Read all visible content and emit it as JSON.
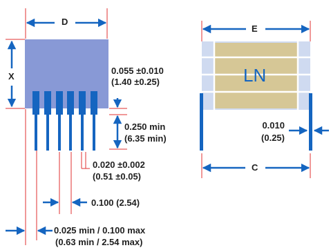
{
  "colors": {
    "dim_line": "#1565c0",
    "ref_line": "#e03030",
    "left_body": "#8899d6",
    "side_body": "#cfdaf0",
    "ln_fill": "#d6c796",
    "ln_text": "#1565c0",
    "pin": "#1565c0",
    "text": "#1f1f1f"
  },
  "left_view": {
    "width_label": "D",
    "height_label": "X",
    "body_gap": "0.055 ±0.010",
    "body_gap_mm": "(1.40 ±0.25)",
    "lead_length": "0.250 min",
    "lead_length_mm": "(6.35 min)",
    "lead_width": "0.020 ±0.002",
    "lead_width_mm": "(0.51 ±0.05)",
    "pitch": "0.100 (2.54)",
    "first_lead": "0.025 min / 0.100 max",
    "first_lead_mm": "(0.63 min / 2.54 max)"
  },
  "side_view": {
    "width_label": "E",
    "lead_spacing_label": "C",
    "body_text": "LN",
    "lead_thickness": "0.010",
    "lead_thickness_mm": "(0.25)"
  }
}
